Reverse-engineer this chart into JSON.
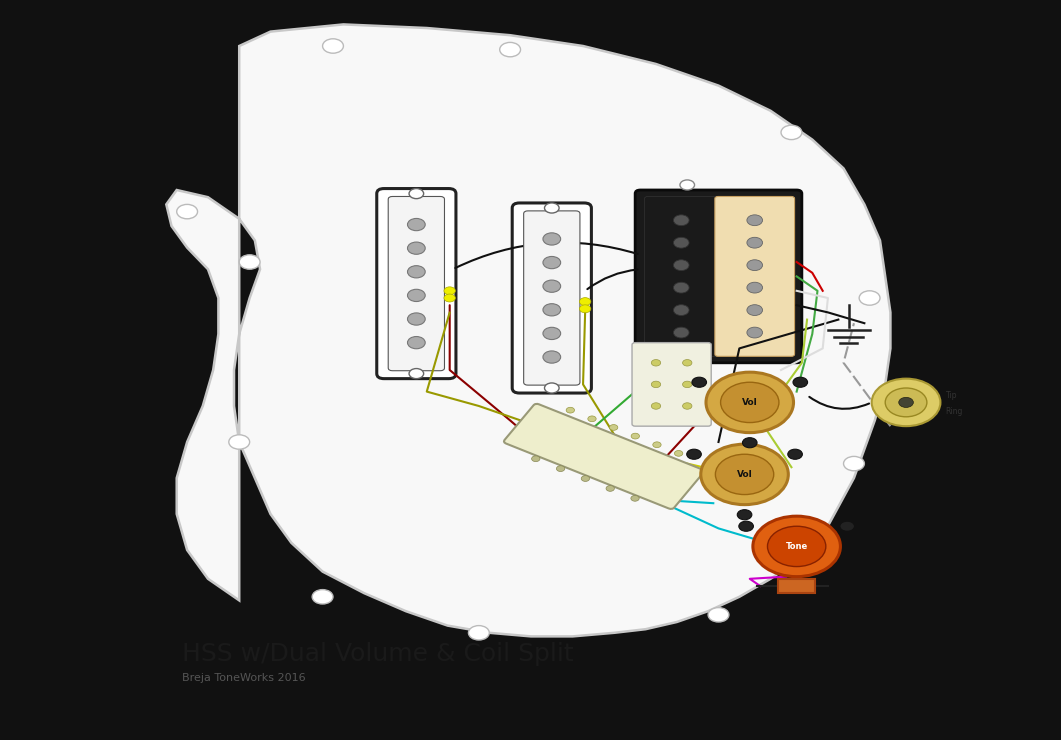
{
  "title": "HSS w/Dual Volume & Coil Split",
  "subtitle": "Breja ToneWorks 2016",
  "text_color": "#1a1a1a",
  "title_fontsize": 18,
  "subtitle_fontsize": 8,
  "page_bg": "#111111",
  "content_bg": "#ffffff",
  "hum_body_cream": "#f0ddb0",
  "hum_black": "#1a1a1a",
  "pot_color": "#d4a843",
  "wire_red": "#992222",
  "wire_dark_red": "#8b0000",
  "wire_black": "#111111",
  "wire_yellow": "#cccc00",
  "wire_olive": "#999900",
  "wire_green": "#44aa44",
  "wire_white": "#e0e0e0",
  "wire_cyan": "#00bbcc",
  "wire_magenta": "#cc00cc",
  "wire_gray": "#888888",
  "ground_color": "#222222",
  "jack_color": "#ccbb66",
  "screw_color": "#aaaaaa"
}
